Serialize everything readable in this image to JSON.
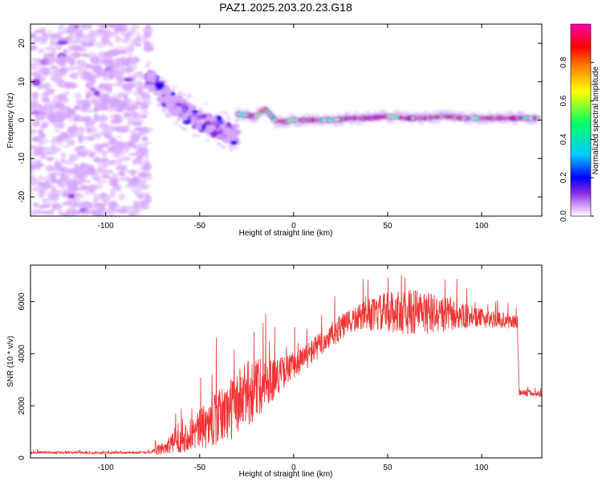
{
  "title": "PAZ1.2025.203.20.23.G18",
  "chart_data": [
    {
      "type": "heatmap",
      "xlabel": "Height of straight line (km)",
      "ylabel": "Frequency (Hz)",
      "xlim": [
        -140,
        132
      ],
      "ylim": [
        -25,
        25
      ],
      "xticks": [
        -100,
        -50,
        0,
        50,
        100
      ],
      "yticks": [
        -20,
        -10,
        0,
        10,
        20
      ],
      "colorbar": {
        "label": "Normalized spectral amplitude",
        "range": [
          0,
          1
        ],
        "ticks": [
          0.0,
          0.2,
          0.4,
          0.6,
          0.8
        ],
        "tick_labels": [
          "0.0",
          "0.2",
          "0.4",
          "0.6",
          "0.8"
        ],
        "colors": [
          "#ffffff",
          "#d6a6ff",
          "#8a2be2",
          "#0000ff",
          "#00ccff",
          "#00ff66",
          "#ffff00",
          "#ff8000",
          "#ff0000",
          "#ff00aa"
        ]
      },
      "features": {
        "noise_region_x": [
          -140,
          -77
        ],
        "descending_ridge": [
          [
            -77,
            11
          ],
          [
            -70,
            7
          ],
          [
            -60,
            3
          ],
          [
            -50,
            0
          ],
          [
            -40,
            -2
          ],
          [
            -30,
            -4
          ]
        ],
        "main_ridge": [
          [
            -30,
            1.5
          ],
          [
            -20,
            1
          ],
          [
            -15,
            3
          ],
          [
            -10,
            0
          ],
          [
            -5,
            -0.5
          ],
          [
            0,
            0
          ],
          [
            10,
            0
          ],
          [
            20,
            0
          ],
          [
            30,
            0.5
          ],
          [
            40,
            0.5
          ],
          [
            50,
            1
          ],
          [
            60,
            0.5
          ],
          [
            70,
            0.5
          ],
          [
            80,
            1
          ],
          [
            90,
            0.5
          ],
          [
            100,
            0.5
          ],
          [
            110,
            0.5
          ],
          [
            120,
            0.5
          ],
          [
            130,
            0.5
          ]
        ]
      }
    },
    {
      "type": "line",
      "xlabel": "Height of straight line (km)",
      "ylabel": "SNR (10 * v/v)",
      "xlim": [
        -140,
        132
      ],
      "ylim": [
        0,
        7400
      ],
      "xticks": [
        -100,
        -50,
        0,
        50,
        100
      ],
      "yticks": [
        0,
        2000,
        4000,
        6000
      ],
      "color": "#ee3333",
      "envelope": [
        {
          "x": -140,
          "mean": 200,
          "spread": 40
        },
        {
          "x": -76,
          "mean": 200,
          "spread": 40
        },
        {
          "x": -72,
          "mean": 300,
          "spread": 200
        },
        {
          "x": -60,
          "mean": 700,
          "spread": 500
        },
        {
          "x": -45,
          "mean": 1300,
          "spread": 900
        },
        {
          "x": -35,
          "mean": 1800,
          "spread": 1200
        },
        {
          "x": -25,
          "mean": 2400,
          "spread": 1300
        },
        {
          "x": -15,
          "mean": 2900,
          "spread": 1000
        },
        {
          "x": -5,
          "mean": 3300,
          "spread": 600
        },
        {
          "x": 5,
          "mean": 3800,
          "spread": 500
        },
        {
          "x": 15,
          "mean": 4400,
          "spread": 500
        },
        {
          "x": 25,
          "mean": 5000,
          "spread": 500
        },
        {
          "x": 35,
          "mean": 5400,
          "spread": 500
        },
        {
          "x": 50,
          "mean": 5600,
          "spread": 800
        },
        {
          "x": 65,
          "mean": 5600,
          "spread": 900
        },
        {
          "x": 80,
          "mean": 5500,
          "spread": 700
        },
        {
          "x": 95,
          "mean": 5400,
          "spread": 400
        },
        {
          "x": 110,
          "mean": 5300,
          "spread": 300
        },
        {
          "x": 119,
          "mean": 5200,
          "spread": 300
        },
        {
          "x": 120,
          "mean": 2500,
          "spread": 150
        },
        {
          "x": 132,
          "mean": 2450,
          "spread": 120
        }
      ]
    }
  ]
}
